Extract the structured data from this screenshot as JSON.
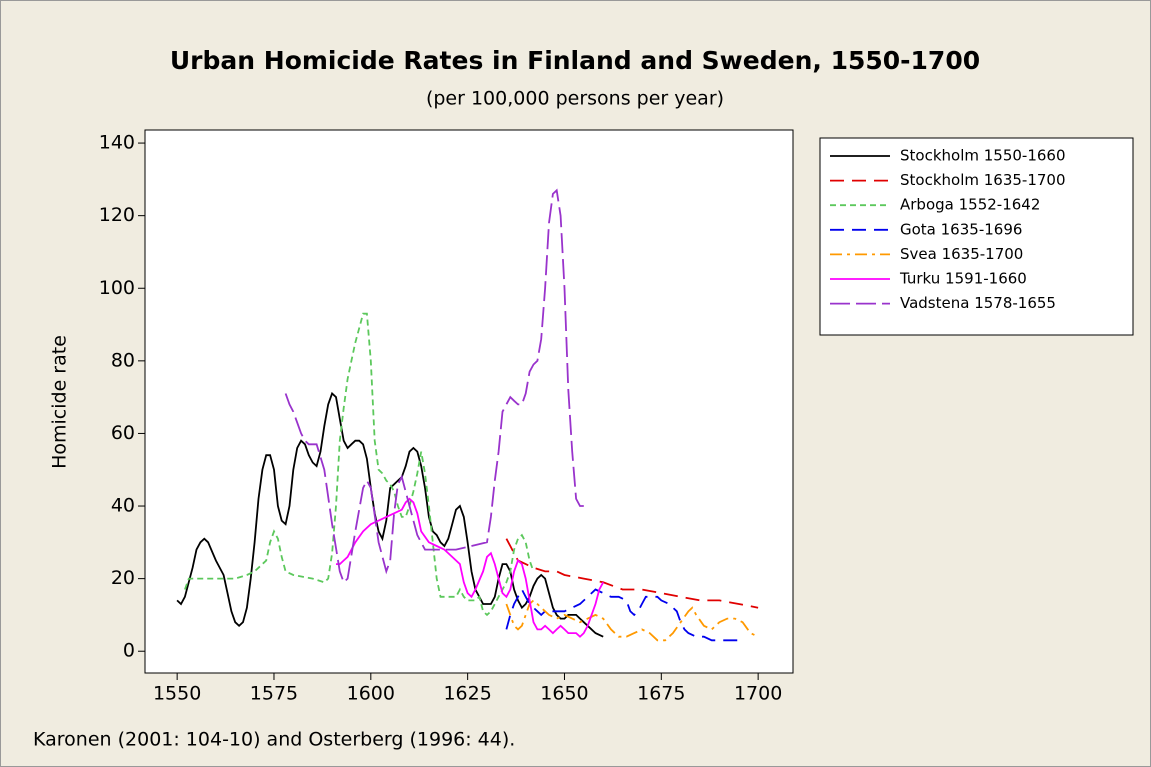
{
  "chart_data": {
    "type": "line",
    "title": "Urban Homicide Rates in Finland and Sweden, 1550-1700",
    "subtitle": "(per 100,000 persons per year)",
    "y_label": "Homicide rate",
    "source": "Karonen (2001: 104-10) and Osterberg (1996: 44).",
    "xlim": [
      1541.7,
      1709
    ],
    "ylim": [
      -6,
      143.6
    ],
    "xticks": [
      1550,
      1575,
      1600,
      1625,
      1650,
      1675,
      1700
    ],
    "yticks": [
      0,
      20,
      40,
      60,
      80,
      100,
      120,
      140
    ],
    "legend": "right",
    "series": [
      {
        "name": "Stockholm 1550-1660",
        "color": "#000000",
        "dash": "none",
        "x": [
          1550,
          1551,
          1552,
          1554,
          1555,
          1556,
          1557,
          1558,
          1560,
          1562,
          1563,
          1564,
          1565,
          1566,
          1567,
          1568,
          1569,
          1570,
          1571,
          1572,
          1573,
          1574,
          1575,
          1576,
          1577,
          1578,
          1579,
          1580,
          1581,
          1582,
          1583,
          1584,
          1585,
          1586,
          1587,
          1588,
          1589,
          1590,
          1591,
          1592,
          1593,
          1594,
          1595,
          1596,
          1597,
          1598,
          1599,
          1600,
          1601,
          1602,
          1603,
          1604,
          1605,
          1606,
          1607,
          1608,
          1609,
          1610,
          1611,
          1612,
          1613,
          1614,
          1615,
          1616,
          1617,
          1618,
          1619,
          1620,
          1621,
          1622,
          1623,
          1624,
          1625,
          1626,
          1627,
          1628,
          1629,
          1630,
          1631,
          1632,
          1633,
          1634,
          1635,
          1636,
          1637,
          1638,
          1639,
          1640,
          1641,
          1642,
          1643,
          1644,
          1645,
          1646,
          1647,
          1648,
          1649,
          1650,
          1651,
          1652,
          1653,
          1654,
          1655,
          1656,
          1658,
          1660
        ],
        "values": [
          14,
          13,
          15,
          23,
          28,
          30,
          31,
          30,
          25,
          21,
          16,
          11,
          8,
          7,
          8,
          12,
          20,
          30,
          42,
          50,
          54,
          54,
          50,
          40,
          36,
          35,
          40,
          50,
          56,
          58,
          57,
          54,
          52,
          51,
          55,
          62,
          68,
          71,
          70,
          64,
          58,
          56,
          57,
          58,
          58,
          57,
          53,
          45,
          38,
          33,
          31,
          36,
          45,
          46,
          47,
          48,
          51,
          55,
          56,
          55,
          51,
          45,
          37,
          33,
          32,
          30,
          29,
          31,
          35,
          39,
          40,
          37,
          30,
          22,
          17,
          15,
          13,
          13,
          13,
          15,
          20,
          24,
          24,
          22,
          17,
          14,
          12,
          13,
          15,
          18,
          20,
          21,
          20,
          16,
          12,
          10,
          9,
          9,
          10,
          10,
          10,
          9,
          8,
          7,
          5,
          4
        ]
      },
      {
        "name": "Stockholm 1635-1700",
        "color": "#e00000",
        "dash": "14,8",
        "x": [
          1635,
          1636,
          1637,
          1638,
          1640,
          1642,
          1645,
          1648,
          1650,
          1655,
          1660,
          1665,
          1670,
          1675,
          1680,
          1685,
          1690,
          1695,
          1700
        ],
        "values": [
          31,
          29,
          27,
          25,
          24,
          23,
          22,
          22,
          21,
          20,
          19,
          17,
          17,
          16,
          15,
          14,
          14,
          13,
          12
        ]
      },
      {
        "name": "Arboga 1552-1642",
        "color": "#5cc85c",
        "dash": "6,4",
        "x": [
          1552,
          1553,
          1555,
          1560,
          1565,
          1568,
          1570,
          1572,
          1573,
          1574,
          1575,
          1576,
          1577,
          1578,
          1580,
          1585,
          1588,
          1589,
          1590,
          1591,
          1592,
          1593,
          1594,
          1595,
          1596,
          1597,
          1598,
          1599,
          1600,
          1601,
          1602,
          1603,
          1604,
          1605,
          1606,
          1607,
          1608,
          1609,
          1610,
          1611,
          1612,
          1613,
          1614,
          1615,
          1616,
          1617,
          1618,
          1620,
          1622,
          1623,
          1624,
          1625,
          1627,
          1628,
          1629,
          1630,
          1631,
          1632,
          1633,
          1634,
          1635,
          1636,
          1637,
          1638,
          1639,
          1640,
          1641,
          1642
        ],
        "values": [
          17,
          20,
          20,
          20,
          20,
          21,
          22,
          24,
          25,
          30,
          33,
          31,
          26,
          22,
          21,
          20,
          19,
          20,
          27,
          40,
          58,
          67,
          75,
          80,
          85,
          89,
          93,
          93,
          80,
          58,
          50,
          49,
          47,
          46,
          44,
          40,
          37,
          37,
          40,
          44,
          49,
          55,
          49,
          40,
          30,
          20,
          15,
          15,
          15,
          17,
          15,
          14,
          14,
          15,
          11,
          10,
          11,
          13,
          15,
          17,
          19,
          22,
          28,
          31,
          32,
          30,
          25,
          22
        ]
      },
      {
        "name": "Gota 1635-1696",
        "color": "#0000ee",
        "dash": "14,8",
        "x": [
          1635,
          1636,
          1637,
          1638,
          1639,
          1640,
          1641,
          1642,
          1643,
          1644,
          1645,
          1646,
          1648,
          1650,
          1652,
          1654,
          1656,
          1658,
          1660,
          1662,
          1664,
          1666,
          1667,
          1668,
          1669,
          1670,
          1671,
          1672,
          1674,
          1675,
          1677,
          1679,
          1680,
          1681,
          1682,
          1684,
          1686,
          1688,
          1690,
          1693,
          1696
        ],
        "values": [
          6,
          10,
          13,
          15,
          17,
          15,
          13,
          12,
          11,
          10,
          11,
          11,
          11,
          11,
          12,
          13,
          15,
          17,
          16,
          15,
          15,
          14,
          11,
          10,
          11,
          13,
          15,
          15,
          15,
          14,
          13,
          11,
          8,
          6,
          5,
          4,
          4,
          3,
          3,
          3,
          3
        ]
      },
      {
        "name": "Svea 1635-1700",
        "color": "#ff9900",
        "dash": "12,5,3,5",
        "x": [
          1635,
          1636,
          1637,
          1638,
          1639,
          1640,
          1641,
          1642,
          1643,
          1644,
          1645,
          1646,
          1648,
          1650,
          1652,
          1654,
          1656,
          1658,
          1660,
          1662,
          1664,
          1666,
          1668,
          1670,
          1672,
          1674,
          1676,
          1678,
          1680,
          1682,
          1683,
          1684,
          1686,
          1688,
          1690,
          1692,
          1694,
          1696,
          1698,
          1700
        ],
        "values": [
          13,
          10,
          7,
          6,
          7,
          10,
          13,
          14,
          13,
          12,
          11,
          10,
          9,
          10,
          9,
          8,
          9,
          10,
          9,
          6,
          4,
          4,
          5,
          6,
          5,
          3,
          3,
          5,
          8,
          11,
          12,
          10,
          7,
          6,
          8,
          9,
          9,
          8,
          5,
          4
        ]
      },
      {
        "name": "Turku 1591-1660",
        "color": "#ff00ff",
        "dash": "none",
        "x": [
          1591,
          1592,
          1593,
          1594,
          1596,
          1598,
          1600,
          1602,
          1604,
          1606,
          1608,
          1609,
          1610,
          1611,
          1612,
          1613,
          1615,
          1617,
          1619,
          1621,
          1623,
          1624,
          1625,
          1626,
          1627,
          1629,
          1630,
          1631,
          1632,
          1633,
          1634,
          1635,
          1636,
          1637,
          1638,
          1639,
          1640,
          1641,
          1642,
          1643,
          1644,
          1645,
          1646,
          1647,
          1648,
          1649,
          1650,
          1651,
          1652,
          1653,
          1654,
          1655,
          1656,
          1658,
          1659,
          1660
        ],
        "values": [
          24,
          24,
          25,
          26,
          30,
          33,
          35,
          36,
          37,
          38,
          39,
          41,
          42,
          41,
          38,
          33,
          30,
          29,
          28,
          26,
          24,
          19,
          16,
          15,
          17,
          22,
          26,
          27,
          24,
          20,
          16,
          15,
          17,
          22,
          25,
          24,
          20,
          14,
          8,
          6,
          6,
          7,
          6,
          5,
          6,
          7,
          6,
          5,
          5,
          5,
          4,
          5,
          7,
          13,
          17,
          19
        ]
      },
      {
        "name": "Vadstena 1578-1655",
        "color": "#9933cc",
        "dash": "20,6",
        "x": [
          1578,
          1579,
          1580,
          1581,
          1582,
          1583,
          1584,
          1586,
          1588,
          1590,
          1592,
          1593,
          1594,
          1596,
          1598,
          1599,
          1600,
          1602,
          1604,
          1605,
          1606,
          1607,
          1608,
          1610,
          1612,
          1614,
          1618,
          1622,
          1626,
          1630,
          1631,
          1632,
          1633,
          1634,
          1635,
          1636,
          1637,
          1638,
          1639,
          1640,
          1641,
          1642,
          1643,
          1644,
          1645,
          1646,
          1647,
          1648,
          1649,
          1650,
          1651,
          1652,
          1653,
          1654,
          1655
        ],
        "values": [
          71,
          68,
          66,
          63,
          60,
          58,
          57,
          57,
          50,
          35,
          22,
          19,
          20,
          33,
          45,
          47,
          45,
          30,
          22,
          25,
          38,
          46,
          48,
          40,
          32,
          28,
          28,
          28,
          29,
          30,
          37,
          47,
          55,
          66,
          68,
          70,
          69,
          68,
          68,
          71,
          77,
          79,
          80,
          86,
          100,
          118,
          126,
          127,
          120,
          100,
          72,
          55,
          42,
          40,
          40
        ]
      }
    ]
  }
}
